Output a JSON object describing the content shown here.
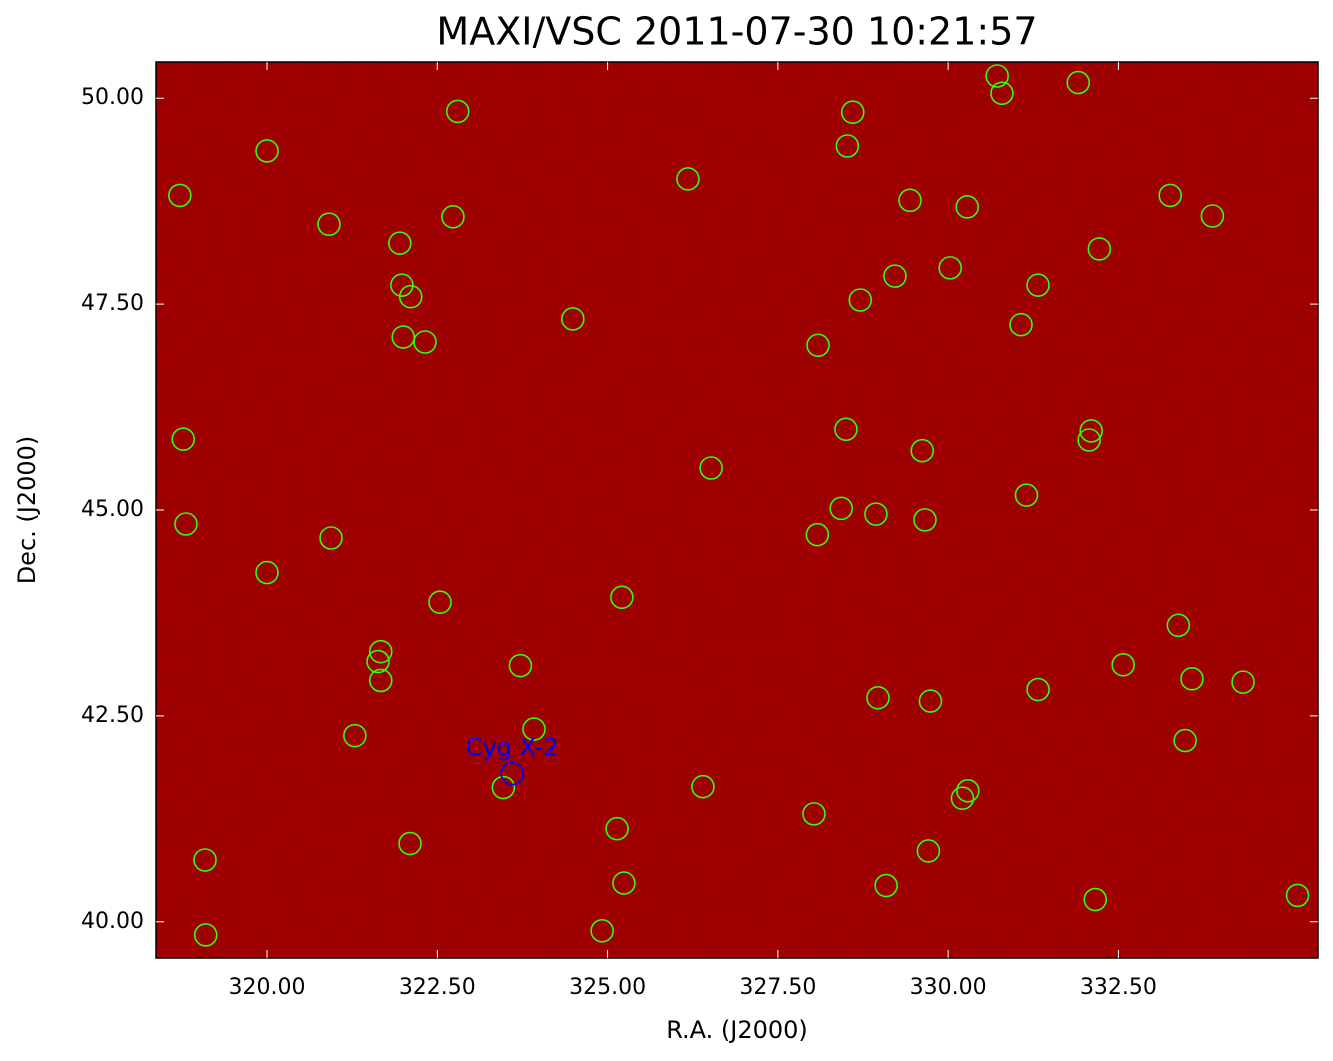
{
  "chart_data": {
    "type": "scatter",
    "title": "MAXI/VSC 2011-07-30 10:21:57",
    "xlabel": "R.A. (J2000)",
    "ylabel": "Dec. (J2000)",
    "background": "#9a0000",
    "xlim": [
      318.37,
      335.43
    ],
    "ylim": [
      39.56,
      50.44
    ],
    "xticks": [
      {
        "value": 320,
        "label": "320.00"
      },
      {
        "value": 322.5,
        "label": "322.50"
      },
      {
        "value": 325,
        "label": "325.00"
      },
      {
        "value": 327.5,
        "label": "327.50"
      },
      {
        "value": 330,
        "label": "330.00"
      },
      {
        "value": 332.5,
        "label": "332.50"
      }
    ],
    "yticks": [
      {
        "value": 40,
        "label": "40.00"
      },
      {
        "value": 42.5,
        "label": "42.50"
      },
      {
        "value": 45,
        "label": "45.00"
      },
      {
        "value": 47.5,
        "label": "47.50"
      },
      {
        "value": 50,
        "label": "50.00"
      }
    ],
    "series": [
      {
        "color": "#33ff00",
        "x": [
          318.72,
          320.0,
          322.8,
          320.91,
          321.95,
          322.73,
          321.98,
          322.11,
          322.0,
          322.32,
          324.49,
          326.18,
          328.6,
          328.52,
          329.44,
          330.28,
          330.72,
          330.79,
          331.91,
          333.26,
          333.88,
          332.22,
          330.03,
          329.22,
          328.71,
          331.32,
          331.07,
          328.09,
          318.77,
          318.81,
          320.94,
          320.0,
          326.52,
          328.5,
          329.62,
          332.1,
          332.07,
          331.15,
          328.43,
          328.94,
          329.66,
          328.08,
          322.54,
          325.21,
          321.67,
          321.63,
          321.67,
          323.72,
          333.38,
          332.57,
          333.58,
          334.33,
          331.32,
          328.97,
          329.74,
          321.29,
          323.92,
          323.47,
          326.4,
          328.03,
          330.29,
          330.21,
          325.14,
          322.1,
          329.71,
          319.09,
          325.24,
          329.09,
          332.16,
          335.13,
          319.1,
          324.92,
          333.48
        ],
        "y": [
          48.82,
          49.36,
          49.84,
          48.47,
          48.24,
          48.56,
          47.73,
          47.59,
          47.1,
          47.04,
          47.32,
          49.02,
          49.83,
          49.42,
          48.76,
          48.68,
          50.27,
          50.06,
          50.19,
          48.82,
          48.57,
          48.17,
          47.94,
          47.84,
          47.55,
          47.73,
          47.25,
          47.0,
          45.86,
          44.83,
          44.66,
          44.24,
          45.51,
          45.98,
          45.72,
          45.96,
          45.85,
          45.18,
          45.02,
          44.95,
          44.88,
          44.7,
          43.88,
          43.94,
          43.28,
          43.16,
          42.93,
          43.11,
          43.6,
          43.12,
          42.95,
          42.91,
          42.82,
          42.72,
          42.68,
          42.26,
          42.34,
          41.63,
          41.64,
          41.31,
          41.59,
          41.5,
          41.13,
          40.95,
          40.86,
          40.75,
          40.47,
          40.44,
          40.27,
          40.32,
          39.84,
          39.89,
          42.2
        ]
      }
    ],
    "annotations": [
      {
        "text": "Cyg X-2",
        "x": 323.6,
        "y": 41.8,
        "color": "#0000ff"
      }
    ]
  }
}
